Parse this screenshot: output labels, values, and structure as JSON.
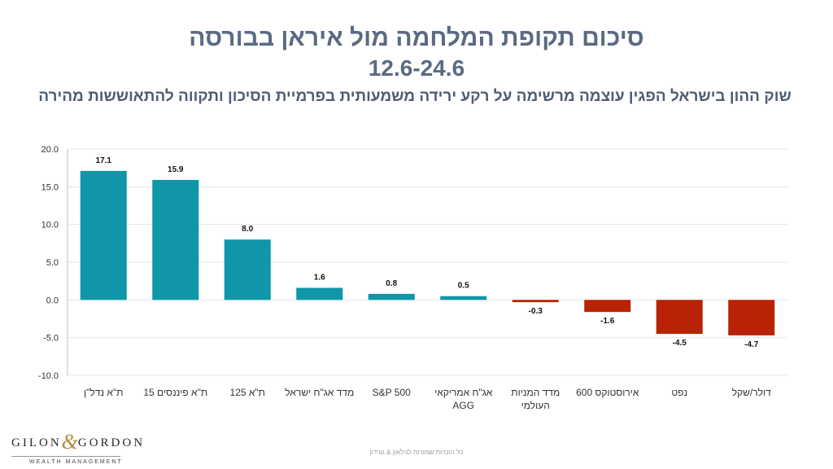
{
  "header": {
    "title_line1": "סיכום תקופת המלחמה מול איראן בבורסה",
    "title_line2": "12.6-24.6",
    "subtitle": "שוק ההון בישראל הפגין עוצמה מרשימה על רקע ירידה משמעותית בפרמיית הסיכון ותקווה להתאוששות מהירה"
  },
  "colors": {
    "positive": "#0f96a8",
    "negative": "#b82205",
    "title": "#5a6a82",
    "grid": "#e6e6e6",
    "axis": "#bfbfbf"
  },
  "chart_data": {
    "type": "bar",
    "title": "",
    "xlabel": "",
    "ylabel": "",
    "ylim": [
      -10,
      20
    ],
    "yticks": [
      "20.0",
      "15.0",
      "10.0",
      "5.0",
      "0.0",
      "-5.0",
      "-10.0"
    ],
    "grid": true,
    "categories": [
      [
        "ת\"א נדל\"ן"
      ],
      [
        "ת\"א פיננסים 15"
      ],
      [
        "ת\"א 125"
      ],
      [
        "מדד אג\"ח ישראל"
      ],
      [
        "S&P 500"
      ],
      [
        "אג\"ח אמריקאי",
        "AGG"
      ],
      [
        "מדד המניות",
        "העולמי"
      ],
      [
        "אירוסטוקס 600"
      ],
      [
        "נפט"
      ],
      [
        "דולר/שקל"
      ]
    ],
    "values": [
      17.1,
      15.9,
      8.0,
      1.6,
      0.8,
      0.5,
      -0.3,
      -1.6,
      -4.5,
      -4.7
    ],
    "value_labels": [
      "17.1",
      "15.9",
      "8.0",
      "1.6",
      "0.8",
      "0.5",
      "-0.3",
      "-1.6",
      "-4.5",
      "-4.7"
    ]
  },
  "logo": {
    "brand_left": "GILON",
    "ampersand": "&",
    "brand_right": "GORDON",
    "tagline": "WEALTH MANAGEMENT"
  },
  "footer": {
    "note": "כל הזכויות שמורות לגילאון & גורדון"
  }
}
